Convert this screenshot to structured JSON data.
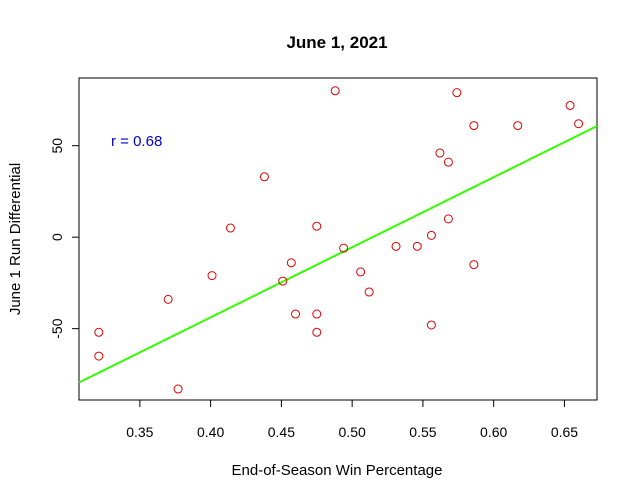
{
  "chart_data": {
    "type": "scatter",
    "title": "June 1, 2021",
    "xlabel": "End-of-Season Win Percentage",
    "ylabel": "June 1 Run Differential",
    "xlim": [
      0.307,
      0.673
    ],
    "ylim": [
      -89,
      87
    ],
    "xticks": [
      0.35,
      0.4,
      0.45,
      0.5,
      0.55,
      0.6,
      0.65
    ],
    "xtick_labels": [
      "0.35",
      "0.40",
      "0.45",
      "0.50",
      "0.55",
      "0.60",
      "0.65"
    ],
    "yticks": [
      -50,
      0,
      50
    ],
    "ytick_labels": [
      "-50",
      "0",
      "50"
    ],
    "grid": false,
    "point_color": "#e00000",
    "line_color": "#33ff00",
    "annotation": {
      "text": "r = 0.68",
      "color": "#0000cc"
    },
    "fit_line": {
      "intercept": -197,
      "slope": 383
    },
    "points": [
      {
        "x": 0.321,
        "y": -52
      },
      {
        "x": 0.321,
        "y": -65
      },
      {
        "x": 0.377,
        "y": -83
      },
      {
        "x": 0.37,
        "y": -34
      },
      {
        "x": 0.401,
        "y": -21
      },
      {
        "x": 0.414,
        "y": 5
      },
      {
        "x": 0.438,
        "y": 33
      },
      {
        "x": 0.451,
        "y": -24
      },
      {
        "x": 0.457,
        "y": -14
      },
      {
        "x": 0.46,
        "y": -42
      },
      {
        "x": 0.475,
        "y": 6
      },
      {
        "x": 0.475,
        "y": -42
      },
      {
        "x": 0.475,
        "y": -52
      },
      {
        "x": 0.488,
        "y": 80
      },
      {
        "x": 0.494,
        "y": -6
      },
      {
        "x": 0.506,
        "y": -19
      },
      {
        "x": 0.512,
        "y": -30
      },
      {
        "x": 0.531,
        "y": -5
      },
      {
        "x": 0.546,
        "y": -5
      },
      {
        "x": 0.556,
        "y": 1
      },
      {
        "x": 0.556,
        "y": -48
      },
      {
        "x": 0.562,
        "y": 46
      },
      {
        "x": 0.568,
        "y": 41
      },
      {
        "x": 0.568,
        "y": 10
      },
      {
        "x": 0.574,
        "y": 79
      },
      {
        "x": 0.586,
        "y": 61
      },
      {
        "x": 0.586,
        "y": -15
      },
      {
        "x": 0.617,
        "y": 61
      },
      {
        "x": 0.654,
        "y": 72
      },
      {
        "x": 0.66,
        "y": 62
      }
    ]
  }
}
